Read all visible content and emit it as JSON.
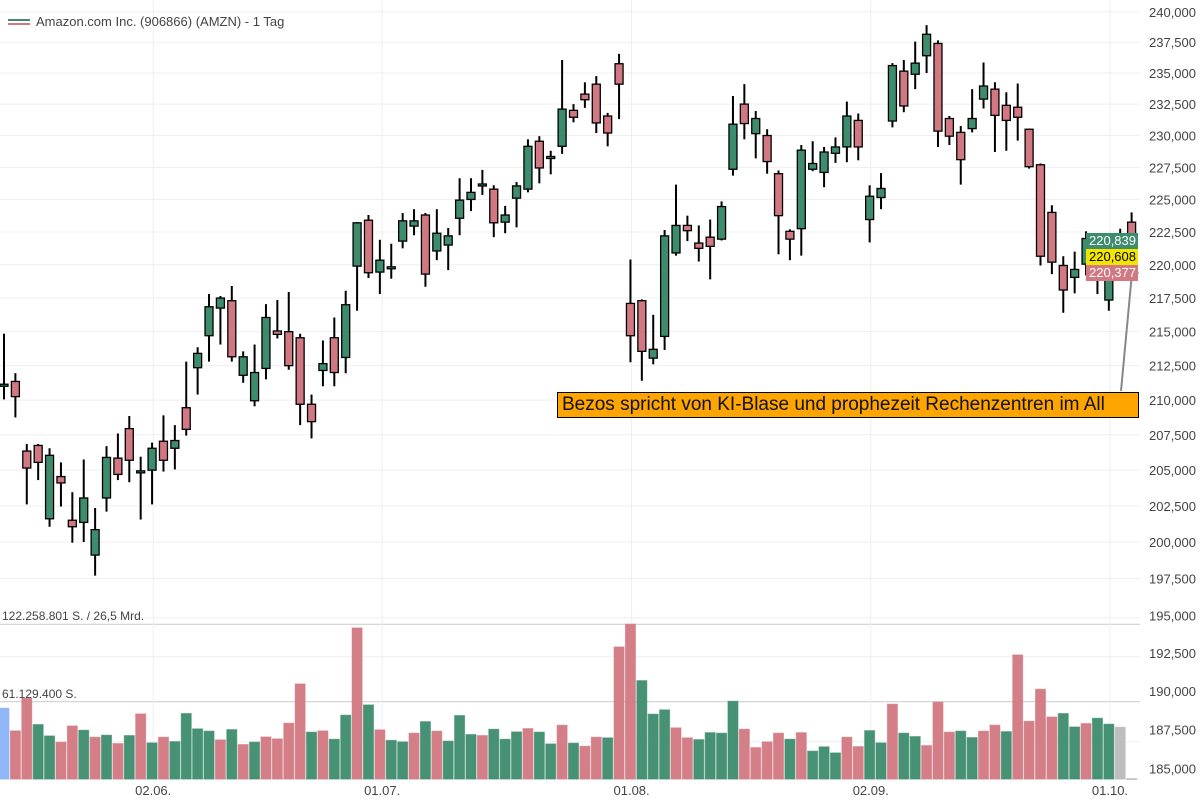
{
  "header": {
    "title": "Amazon.com Inc. (906866) (AMZN) - 1 Tag"
  },
  "volume_labels": {
    "max": "122.258.801 S. / 26,5 Mrd.",
    "half": "61.129.400 S."
  },
  "price_tags": [
    {
      "value": "220,839",
      "bg": "#3d8c6e",
      "fg": "#ffffff"
    },
    {
      "value": "220,608",
      "bg": "#f2e600",
      "fg": "#000000"
    },
    {
      "value": "220,377",
      "bg": "#d27882",
      "fg": "#ffffff"
    }
  ],
  "annotation": {
    "text": "Bezos spricht von KI-Blase und prophezeit Rechenzentren im All"
  },
  "colors": {
    "up": "#3d8c6e",
    "down": "#d27882",
    "highlight": "#8ab4f8",
    "neutral": "#bbbbbb"
  },
  "chart_data": {
    "type": "candlestick",
    "title": "Amazon.com Inc. (906866) (AMZN) - 1 Tag",
    "scale": "log",
    "ylim": [
      185000,
      240000
    ],
    "grid": true,
    "y_ticks": [
      "240,000",
      "237,500",
      "235,000",
      "232,500",
      "230,000",
      "227,500",
      "225,000",
      "222,500",
      "220,000",
      "217,500",
      "215,000",
      "212,500",
      "210,000",
      "207,500",
      "205,000",
      "202,500",
      "200,000",
      "197,500",
      "195,000",
      "192,500",
      "190,000",
      "187,500",
      "185,000"
    ],
    "y_tick_values": [
      240000,
      237500,
      235000,
      232500,
      230000,
      227500,
      225000,
      222500,
      220000,
      217500,
      215000,
      212500,
      210000,
      207500,
      205000,
      202500,
      200000,
      197500,
      195000,
      192500,
      190000,
      187500,
      185000
    ],
    "x_ticks": [
      {
        "label": "02.06.",
        "index": 13.1
      },
      {
        "label": "01.07.",
        "index": 33.2
      },
      {
        "label": "01.08.",
        "index": 55.1
      },
      {
        "label": "02.09.",
        "index": 76.1
      },
      {
        "label": "01.10.",
        "index": 97.1
      }
    ],
    "ohlc": [
      [
        211000,
        214850,
        210050,
        211150
      ],
      [
        211350,
        211950,
        208750,
        210250
      ],
      [
        206350,
        206850,
        202600,
        205150
      ],
      [
        206750,
        206850,
        204300,
        205550
      ],
      [
        201600,
        206550,
        201050,
        206050
      ],
      [
        204550,
        205550,
        202450,
        204100
      ],
      [
        201500,
        203450,
        199950,
        201050
      ],
      [
        201350,
        205750,
        200000,
        203050
      ],
      [
        199100,
        202350,
        197700,
        200850
      ],
      [
        203050,
        206700,
        202100,
        205900
      ],
      [
        205850,
        207600,
        204300,
        204700
      ],
      [
        207950,
        208850,
        204150,
        205700
      ],
      [
        204900,
        205950,
        201550,
        204950
      ],
      [
        205000,
        206950,
        202600,
        206550
      ],
      [
        207050,
        208900,
        204900,
        205700
      ],
      [
        206550,
        208200,
        205050,
        207100
      ],
      [
        209450,
        212800,
        207450,
        207900
      ],
      [
        212350,
        213850,
        210400,
        213400
      ],
      [
        214700,
        217800,
        212800,
        216850
      ],
      [
        216750,
        217650,
        214050,
        217500
      ],
      [
        217300,
        218400,
        212800,
        213150
      ],
      [
        211800,
        213550,
        211250,
        213150
      ],
      [
        209950,
        214050,
        209550,
        212000
      ],
      [
        212300,
        217050,
        211500,
        216050
      ],
      [
        215050,
        217350,
        214500,
        214800
      ],
      [
        215000,
        217950,
        212200,
        212500
      ],
      [
        214550,
        214850,
        208200,
        209700
      ],
      [
        209700,
        210400,
        207250,
        208450
      ],
      [
        212150,
        214350,
        211000,
        212650
      ],
      [
        214550,
        216050,
        211000,
        212000
      ],
      [
        213100,
        218050,
        211950,
        217000
      ],
      [
        219900,
        223250,
        216550,
        223200
      ],
      [
        223400,
        223800,
        219000,
        219400
      ],
      [
        219450,
        221900,
        217800,
        220350
      ],
      [
        219700,
        221600,
        218950,
        219850
      ],
      [
        221800,
        223950,
        221250,
        223350
      ],
      [
        222950,
        224250,
        222250,
        223350
      ],
      [
        223800,
        223950,
        218350,
        219300
      ],
      [
        221050,
        224250,
        220350,
        222400
      ],
      [
        221500,
        222800,
        219600,
        222200
      ],
      [
        223550,
        226650,
        222250,
        224950
      ],
      [
        225000,
        226650,
        224100,
        225550
      ],
      [
        226150,
        227300,
        225350,
        226200
      ],
      [
        225800,
        226100,
        222100,
        223200
      ],
      [
        223250,
        224500,
        222400,
        223800
      ],
      [
        225100,
        226350,
        222850,
        226050
      ],
      [
        225800,
        229700,
        225550,
        229150
      ],
      [
        229550,
        229950,
        226250,
        227450
      ],
      [
        228250,
        228800,
        226950,
        228350
      ],
      [
        229150,
        236050,
        228550,
        232100
      ],
      [
        232000,
        232500,
        231050,
        231450
      ],
      [
        233300,
        234250,
        232200,
        232850
      ],
      [
        234100,
        234750,
        230200,
        231000
      ],
      [
        231550,
        231800,
        229150,
        230200
      ],
      [
        235750,
        236550,
        231300,
        234100
      ],
      [
        217100,
        220400,
        212750,
        214700
      ],
      [
        217300,
        217400,
        211400,
        213550
      ],
      [
        213050,
        216250,
        212600,
        213700
      ],
      [
        214650,
        222650,
        213650,
        222200
      ],
      [
        220900,
        226150,
        220700,
        223000
      ],
      [
        223000,
        223750,
        221800,
        222600
      ],
      [
        221650,
        223000,
        220250,
        221250
      ],
      [
        222100,
        223450,
        218900,
        221400
      ],
      [
        221950,
        224850,
        221850,
        224450
      ],
      [
        227350,
        233150,
        226850,
        230900
      ],
      [
        232500,
        234100,
        229700,
        230950
      ],
      [
        230150,
        231950,
        228200,
        231350
      ],
      [
        230000,
        230500,
        227000,
        227950
      ],
      [
        227000,
        227250,
        220800,
        223750
      ],
      [
        222550,
        222700,
        220350,
        221950
      ],
      [
        222750,
        229250,
        220700,
        228850
      ],
      [
        227350,
        229550,
        227200,
        227800
      ],
      [
        227100,
        229100,
        225950,
        228700
      ],
      [
        228600,
        229850,
        227850,
        229100
      ],
      [
        229100,
        232700,
        227900,
        231550
      ],
      [
        231200,
        231750,
        228050,
        229100
      ],
      [
        223450,
        226100,
        221700,
        225250
      ],
      [
        225150,
        227050,
        224250,
        225850
      ],
      [
        231150,
        235800,
        230650,
        235600
      ],
      [
        235150,
        236050,
        231850,
        232350
      ],
      [
        234900,
        237550,
        233700,
        235800
      ],
      [
        236400,
        238900,
        235000,
        238150
      ],
      [
        237400,
        237650,
        229100,
        230350
      ],
      [
        231350,
        231550,
        229250,
        229950
      ],
      [
        230250,
        230750,
        226150,
        228100
      ],
      [
        230550,
        233700,
        230250,
        231350
      ],
      [
        232900,
        235850,
        232150,
        233950
      ],
      [
        233700,
        234250,
        228700,
        231600
      ],
      [
        232400,
        233450,
        228800,
        231200
      ],
      [
        232250,
        234150,
        229600,
        231450
      ],
      [
        230500,
        230550,
        227400,
        227550
      ],
      [
        227700,
        227800,
        219950,
        220650
      ],
      [
        224000,
        224550,
        219300,
        220200
      ],
      [
        219950,
        220650,
        216400,
        218100
      ],
      [
        219050,
        221000,
        217850,
        219650
      ],
      [
        220050,
        222550,
        219200,
        222000
      ],
      [
        221950,
        222150,
        217800,
        219500
      ],
      [
        217350,
        222100,
        216550,
        220500
      ],
      [
        220950,
        222750,
        218850,
        222300
      ],
      [
        223250,
        224000,
        219200,
        219300
      ]
    ],
    "volume_millions": [
      55.9,
      38.0,
      63.8,
      43.0,
      34.0,
      29.1,
      41.9,
      38.5,
      33.0,
      34.6,
      28.0,
      34.3,
      51.4,
      28.5,
      33.0,
      29.5,
      51.7,
      39.6,
      37.8,
      30.9,
      39.0,
      27.2,
      29.1,
      33.2,
      31.7,
      44.1,
      75.1,
      37.0,
      38.0,
      31.4,
      50.4,
      119.3,
      58.5,
      38.8,
      30.5,
      29.3,
      36.2,
      45.3,
      37.8,
      29.9,
      50.1,
      35.1,
      34.3,
      39.3,
      31.4,
      37.2,
      39.8,
      37.0,
      27.7,
      42.5,
      28.3,
      25.9,
      33.0,
      32.5,
      104.3,
      122.3,
      77.7,
      51.2,
      54.6,
      40.4,
      32.5,
      31.1,
      36.6,
      36.2,
      61.4,
      39.3,
      24.8,
      29.3,
      36.2,
      31.4,
      36.6,
      22.0,
      25.4,
      20.6,
      33.0,
      25.6,
      38.2,
      28.5,
      59.1,
      36.2,
      33.5,
      26.4,
      60.7,
      37.0,
      37.8,
      32.7,
      37.8,
      42.5,
      37.4,
      98.0,
      45.6,
      70.9,
      49.0,
      51.7,
      41.1,
      43.8,
      48.0,
      43.3,
      40.9,
      0.3
    ],
    "volume_colors": "brrggrrgrgrgrgrggggrgrgrrrrgrggrgrggrgrgggrgggrggrgrrgrrgggrrggggrrrrgrgggrrggrggrrrggrrgrrrrggrggn",
    "volume_max_label": "122.258.801 S. / 26,5 Mrd.",
    "volume_half_label": "61.129.400 S."
  }
}
